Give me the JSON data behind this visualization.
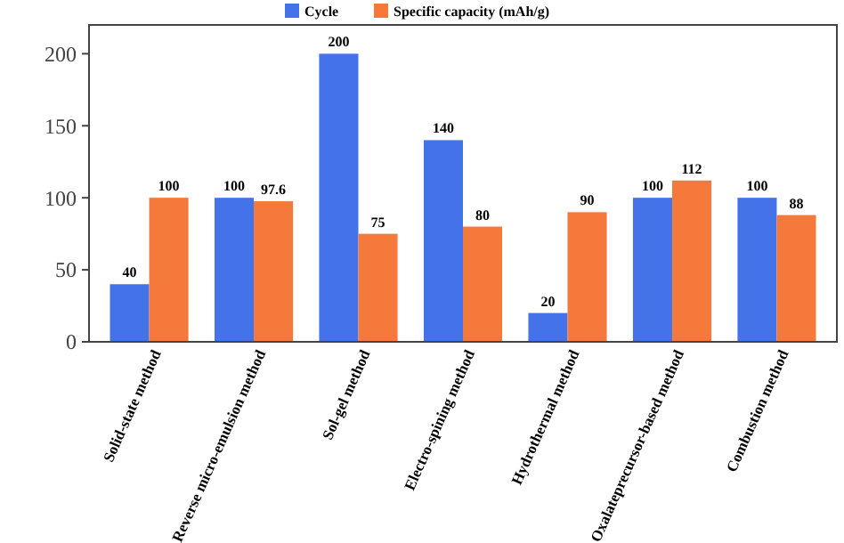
{
  "chart_data": {
    "type": "bar",
    "categories": [
      "Solid-state method",
      "Reverse micro-emulsion method",
      "Sol-gel method",
      "Electro-spining method",
      "Hydrothermal method",
      "Oxalateprecursor-based method",
      "Combustion method"
    ],
    "series": [
      {
        "name": "Cycle",
        "color": "#4472e8",
        "values": [
          40,
          100,
          200,
          140,
          20,
          100,
          100
        ]
      },
      {
        "name": "Specific capacity (mAh/g)",
        "color": "#f4793b",
        "values": [
          100,
          97.6,
          75,
          80,
          90,
          112,
          88
        ]
      }
    ],
    "ylim": [
      0,
      220
    ],
    "yticks": [
      0,
      50,
      100,
      150,
      200
    ],
    "data_labels": true,
    "legend": "top",
    "grid": false
  }
}
